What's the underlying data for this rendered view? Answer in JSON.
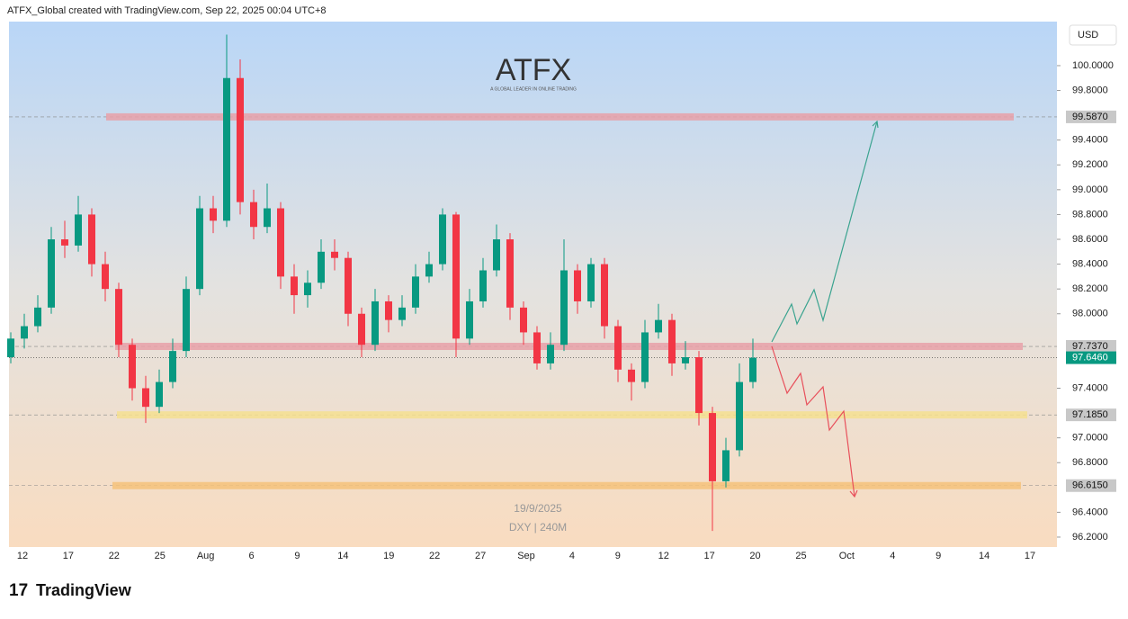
{
  "header": "ATFX_Global created with TradingView.com, Sep 22, 2025 00:04 UTC+8",
  "footer": "TradingView",
  "chart_data": {
    "type": "candlestick",
    "currency": "USD",
    "logo": "ATFX",
    "logo_tagline": "A GLOBAL LEADER IN ONLINE TRADING",
    "date_note": "19/9/2025",
    "symbol_note": "DXY | 240M",
    "up_color": "#089981",
    "down_color": "#f23645",
    "ylim": [
      96.12,
      100.355
    ],
    "yticks": [
      {
        "value": 100,
        "label": "100.0000"
      },
      {
        "value": 99.8,
        "label": "99.8000"
      },
      {
        "value": 99.4,
        "label": "99.4000"
      },
      {
        "value": 99.2,
        "label": "99.2000"
      },
      {
        "value": 99,
        "label": "99.0000"
      },
      {
        "value": 98.8,
        "label": "98.8000"
      },
      {
        "value": 98.6,
        "label": "98.6000"
      },
      {
        "value": 98.4,
        "label": "98.4000"
      },
      {
        "value": 98.2,
        "label": "98.2000"
      },
      {
        "value": 98,
        "label": "98.0000"
      },
      {
        "value": 97.4,
        "label": "97.4000"
      },
      {
        "value": 97,
        "label": "97.0000"
      },
      {
        "value": 96.8,
        "label": "96.8000"
      },
      {
        "value": 96.4,
        "label": "96.4000"
      },
      {
        "value": 96.2,
        "label": "96.2000"
      }
    ],
    "xtick_labels": [
      "12",
      "17",
      "22",
      "25",
      "Aug",
      "6",
      "9",
      "14",
      "19",
      "22",
      "27",
      "Sep",
      "4",
      "9",
      "12",
      "17",
      "20",
      "25",
      "Oct",
      "4",
      "9",
      "14",
      "17"
    ],
    "levels": [
      {
        "value": 99.587,
        "label": "99.5870",
        "color": "#e8a0a8"
      },
      {
        "value": 97.737,
        "label": "97.7370",
        "color": "#e8a0a8"
      },
      {
        "value": 97.185,
        "label": "97.1850",
        "color": "#f5e090"
      },
      {
        "value": 96.615,
        "label": "96.6150",
        "color": "#f5c27a"
      }
    ],
    "last_price": {
      "value": 97.646,
      "label": "97.6460"
    },
    "candles": [
      [
        97.65,
        97.85,
        97.6,
        97.8
      ],
      [
        97.8,
        98.0,
        97.72,
        97.9
      ],
      [
        97.9,
        98.15,
        97.85,
        98.05
      ],
      [
        98.05,
        98.7,
        98.0,
        98.6
      ],
      [
        98.6,
        98.75,
        98.45,
        98.55
      ],
      [
        98.55,
        98.95,
        98.5,
        98.8
      ],
      [
        98.8,
        98.85,
        98.3,
        98.4
      ],
      [
        98.4,
        98.5,
        98.1,
        98.2
      ],
      [
        98.2,
        98.25,
        97.65,
        97.75
      ],
      [
        97.75,
        97.8,
        97.3,
        97.4
      ],
      [
        97.4,
        97.5,
        97.12,
        97.25
      ],
      [
        97.25,
        97.55,
        97.2,
        97.45
      ],
      [
        97.45,
        97.8,
        97.4,
        97.7
      ],
      [
        97.7,
        98.3,
        97.65,
        98.2
      ],
      [
        98.2,
        98.95,
        98.15,
        98.85
      ],
      [
        98.85,
        98.95,
        98.65,
        98.75
      ],
      [
        98.75,
        100.25,
        98.7,
        99.9
      ],
      [
        99.9,
        100.05,
        98.8,
        98.9
      ],
      [
        98.9,
        99.0,
        98.6,
        98.7
      ],
      [
        98.7,
        99.05,
        98.65,
        98.85
      ],
      [
        98.85,
        98.9,
        98.2,
        98.3
      ],
      [
        98.3,
        98.4,
        98.0,
        98.15
      ],
      [
        98.15,
        98.35,
        98.05,
        98.25
      ],
      [
        98.25,
        98.6,
        98.2,
        98.5
      ],
      [
        98.5,
        98.6,
        98.35,
        98.45
      ],
      [
        98.45,
        98.5,
        97.9,
        98.0
      ],
      [
        98.0,
        98.05,
        97.65,
        97.75
      ],
      [
        97.75,
        98.2,
        97.7,
        98.1
      ],
      [
        98.1,
        98.15,
        97.85,
        97.95
      ],
      [
        97.95,
        98.15,
        97.9,
        98.05
      ],
      [
        98.05,
        98.4,
        98.0,
        98.3
      ],
      [
        98.3,
        98.5,
        98.25,
        98.4
      ],
      [
        98.4,
        98.85,
        98.35,
        98.8
      ],
      [
        98.8,
        98.82,
        97.65,
        97.8
      ],
      [
        97.8,
        98.2,
        97.75,
        98.1
      ],
      [
        98.1,
        98.45,
        98.05,
        98.35
      ],
      [
        98.35,
        98.72,
        98.3,
        98.6
      ],
      [
        98.6,
        98.65,
        97.95,
        98.05
      ],
      [
        98.05,
        98.1,
        97.75,
        97.85
      ],
      [
        97.85,
        97.9,
        97.55,
        97.6
      ],
      [
        97.6,
        97.85,
        97.55,
        97.75
      ],
      [
        97.75,
        98.6,
        97.7,
        98.35
      ],
      [
        98.35,
        98.4,
        98.0,
        98.1
      ],
      [
        98.1,
        98.45,
        98.05,
        98.4
      ],
      [
        98.4,
        98.45,
        97.8,
        97.9
      ],
      [
        97.9,
        97.95,
        97.45,
        97.55
      ],
      [
        97.55,
        97.6,
        97.3,
        97.45
      ],
      [
        97.45,
        97.95,
        97.4,
        97.85
      ],
      [
        97.85,
        98.08,
        97.8,
        97.95
      ],
      [
        97.95,
        98.0,
        97.5,
        97.6
      ],
      [
        97.6,
        97.78,
        97.55,
        97.65
      ],
      [
        97.65,
        97.7,
        97.1,
        97.2
      ],
      [
        97.2,
        97.25,
        96.25,
        96.65
      ],
      [
        96.65,
        97.0,
        96.6,
        96.9
      ],
      [
        96.9,
        97.6,
        96.85,
        97.45
      ],
      [
        97.45,
        97.8,
        97.4,
        97.646
      ]
    ]
  }
}
